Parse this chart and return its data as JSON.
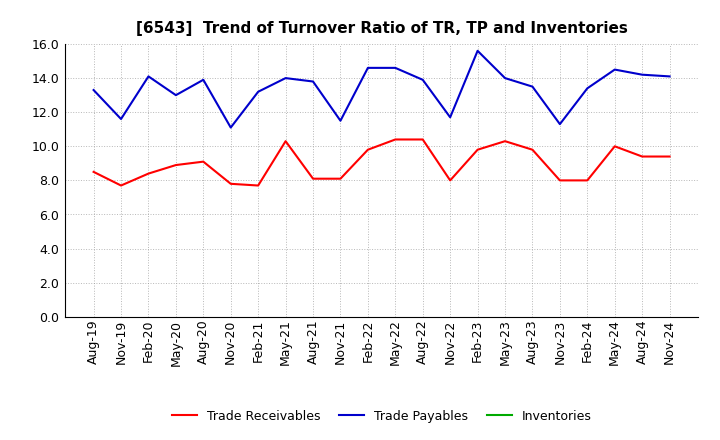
{
  "title": "[6543]  Trend of Turnover Ratio of TR, TP and Inventories",
  "labels": [
    "Aug-19",
    "Nov-19",
    "Feb-20",
    "May-20",
    "Aug-20",
    "Nov-20",
    "Feb-21",
    "May-21",
    "Aug-21",
    "Nov-21",
    "Feb-22",
    "May-22",
    "Aug-22",
    "Nov-22",
    "Feb-23",
    "May-23",
    "Aug-23",
    "Nov-23",
    "Feb-24",
    "May-24",
    "Aug-24",
    "Nov-24"
  ],
  "trade_receivables": [
    8.5,
    7.7,
    8.4,
    8.9,
    9.1,
    7.8,
    7.7,
    10.3,
    8.1,
    8.1,
    9.8,
    10.4,
    10.4,
    8.0,
    9.8,
    10.3,
    9.8,
    8.0,
    8.0,
    10.0,
    9.4,
    9.4
  ],
  "trade_payables": [
    13.3,
    11.6,
    14.1,
    13.0,
    13.9,
    11.1,
    13.2,
    14.0,
    13.8,
    11.5,
    14.6,
    14.6,
    13.9,
    11.7,
    15.6,
    14.0,
    13.5,
    11.3,
    13.4,
    14.5,
    14.2,
    14.1
  ],
  "inventories": [
    null,
    null,
    null,
    null,
    null,
    null,
    null,
    null,
    null,
    null,
    null,
    null,
    null,
    null,
    null,
    null,
    null,
    null,
    null,
    null,
    null,
    null
  ],
  "ylim": [
    0.0,
    16.0
  ],
  "yticks": [
    0.0,
    2.0,
    4.0,
    6.0,
    8.0,
    10.0,
    12.0,
    14.0,
    16.0
  ],
  "color_receivables": "#ff0000",
  "color_payables": "#0000cc",
  "color_inventories": "#00aa00",
  "background_color": "#ffffff",
  "grid_color": "#999999",
  "legend_labels": [
    "Trade Receivables",
    "Trade Payables",
    "Inventories"
  ],
  "title_fontsize": 11,
  "tick_fontsize": 9,
  "legend_fontsize": 9
}
